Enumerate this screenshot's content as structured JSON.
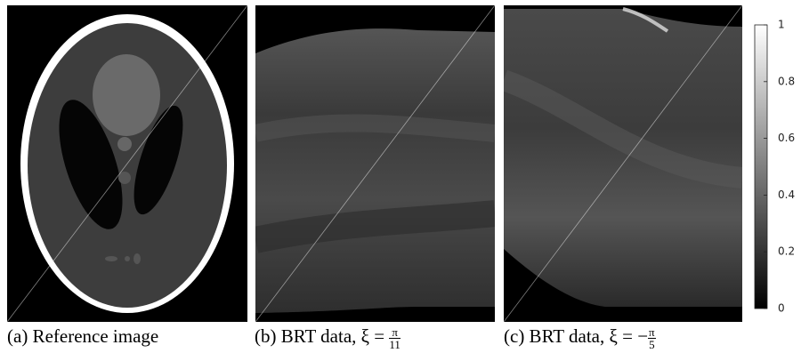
{
  "panels": [
    {
      "caption": "(a) Reference image"
    },
    {
      "caption": "(b) BRT data, ξ = ",
      "fraction": {
        "numerator": "π",
        "denominator": "11"
      }
    },
    {
      "caption": "(c) BRT data, ξ = −",
      "fraction": {
        "numerator": "π",
        "denominator": "5"
      }
    }
  ],
  "colorbar": {
    "ticks": [
      0,
      0.2,
      0.4,
      0.6,
      0.8,
      1
    ]
  }
}
